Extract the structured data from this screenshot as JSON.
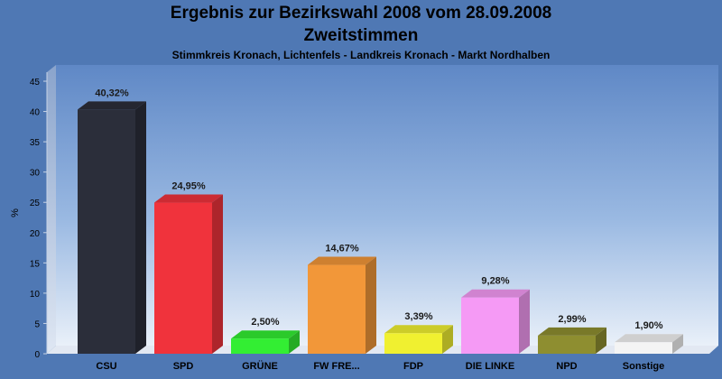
{
  "chart_data": {
    "type": "bar",
    "title": "Ergebnis zur Bezirkswahl 2008 vom 28.09.2008",
    "subtitle": "Zweitstimmen",
    "subsubtitle": "Stimmkreis Kronach, Lichtenfels - Landkreis Kronach - Markt Nordhalben",
    "ylabel": "%",
    "xlabel": "",
    "ylim": [
      0,
      45
    ],
    "yticks": [
      "0",
      "5",
      "10",
      "15",
      "20",
      "25",
      "30",
      "35",
      "40",
      "45"
    ],
    "grid": false,
    "categories": [
      "CSU",
      "SPD",
      "GRÜNE",
      "FW FRE...",
      "FDP",
      "DIE LINKE",
      "NPD",
      "Sonstige"
    ],
    "values": [
      40.32,
      24.95,
      2.5,
      14.67,
      3.39,
      9.28,
      2.99,
      1.9
    ],
    "value_labels": [
      "40,32%",
      "24,95%",
      "2,50%",
      "14,67%",
      "3,39%",
      "9,28%",
      "2,99%",
      "1,90%"
    ],
    "colors": [
      "#2b2e3a",
      "#f0333c",
      "#33ee33",
      "#f29739",
      "#f0f030",
      "#f59af5",
      "#8e8e30",
      "#f4f4f4"
    ]
  }
}
